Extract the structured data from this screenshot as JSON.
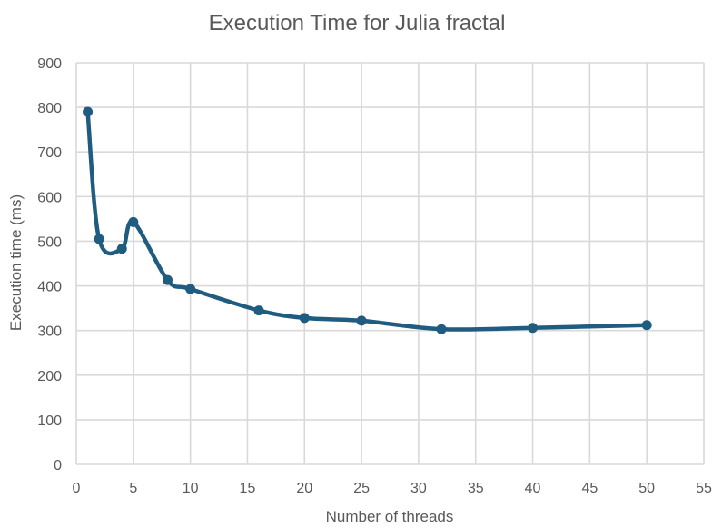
{
  "chart_data": {
    "type": "line",
    "title": "Execution Time for Julia fractal",
    "xlabel": "Number of threads",
    "ylabel": "Execution time (ms)",
    "xlim": [
      0,
      55
    ],
    "ylim": [
      0,
      900
    ],
    "xticks": [
      0,
      5,
      10,
      15,
      20,
      25,
      30,
      35,
      40,
      45,
      50,
      55
    ],
    "yticks": [
      0,
      100,
      200,
      300,
      400,
      500,
      600,
      700,
      800,
      900
    ],
    "grid": true,
    "smooth": true,
    "legend": "none",
    "series": [
      {
        "color": "#1f5c80",
        "points": [
          {
            "x": 1,
            "y": 790
          },
          {
            "x": 2,
            "y": 505
          },
          {
            "x": 4,
            "y": 483
          },
          {
            "x": 5,
            "y": 543
          },
          {
            "x": 8,
            "y": 413
          },
          {
            "x": 10,
            "y": 393
          },
          {
            "x": 16,
            "y": 345
          },
          {
            "x": 20,
            "y": 328
          },
          {
            "x": 25,
            "y": 322
          },
          {
            "x": 32,
            "y": 303
          },
          {
            "x": 40,
            "y": 306
          },
          {
            "x": 50,
            "y": 312
          }
        ]
      }
    ]
  }
}
